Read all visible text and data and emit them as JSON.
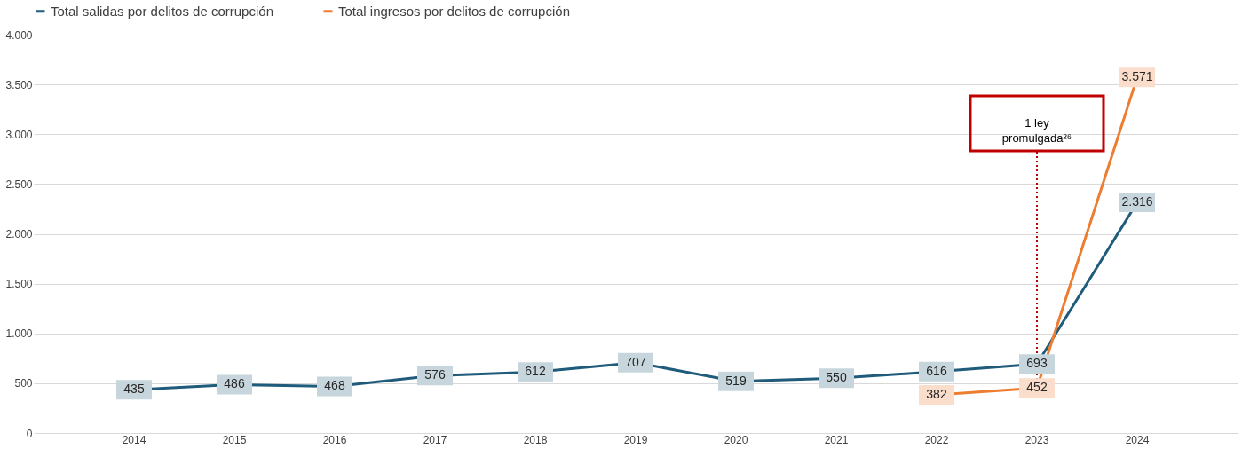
{
  "chart_data": {
    "type": "line",
    "categories": [
      "2014",
      "2015",
      "2016",
      "2017",
      "2018",
      "2019",
      "2020",
      "2021",
      "2022",
      "2023",
      "2024"
    ],
    "series": [
      {
        "name": "Total salidas por delitos de corrupción",
        "color": "#1f5b7a",
        "values": [
          435,
          486,
          468,
          576,
          612,
          707,
          519,
          550,
          616,
          693,
          2316
        ],
        "value_labels": [
          "435",
          "486",
          "468",
          "576",
          "612",
          "707",
          "519",
          "550",
          "616",
          "693",
          "2.316"
        ]
      },
      {
        "name": "Total ingresos por delitos de corrupción",
        "color": "#ed7d31",
        "values": [
          null,
          null,
          null,
          null,
          null,
          null,
          null,
          null,
          382,
          452,
          3571
        ],
        "value_labels": [
          null,
          null,
          null,
          null,
          null,
          null,
          null,
          null,
          "382",
          "452",
          "3.571"
        ]
      }
    ],
    "ylim": [
      0,
      4000
    ],
    "yticks": [
      {
        "value": 0,
        "label": "0"
      },
      {
        "value": 500,
        "label": "500"
      },
      {
        "value": 1000,
        "label": "1.000"
      },
      {
        "value": 1500,
        "label": "1.500"
      },
      {
        "value": 2000,
        "label": "2.000"
      },
      {
        "value": 2500,
        "label": "2.500"
      },
      {
        "value": 3000,
        "label": "3.000"
      },
      {
        "value": 3500,
        "label": "3.500"
      },
      {
        "value": 4000,
        "label": "4.000"
      }
    ],
    "grid": "y",
    "legend": "top",
    "marker": "square",
    "line_style": "solid",
    "ref_lines": [
      {
        "axis": "x",
        "value": "2023",
        "label": "1 ley promulgada²⁶",
        "color": "#c00000",
        "line_style": "dotted"
      }
    ]
  }
}
